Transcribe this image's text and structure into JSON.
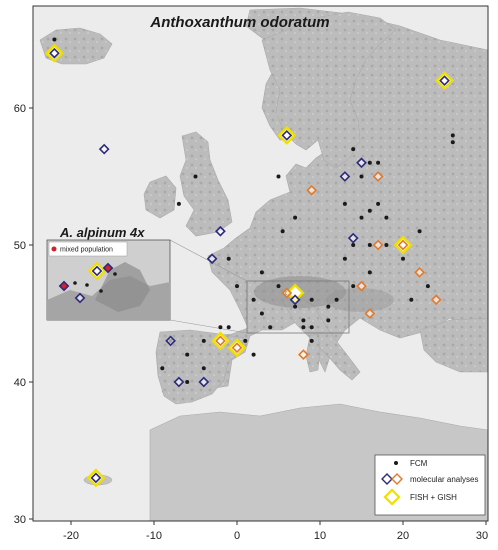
{
  "title": "Anthoxanthum odoratum",
  "inset": {
    "title": "A. alpinum 4x",
    "legend_label": "mixed population",
    "colors": {
      "mixed": "#d62027"
    }
  },
  "legend": {
    "fcm": "FCM",
    "molecular": "molecular analyses",
    "fish": "FISH + GISH"
  },
  "colors": {
    "fcm": "#1a1a1a",
    "molecular_a": "#2c2a7a",
    "molecular_b": "#e07a2c",
    "fish": "#f0e000"
  },
  "axes": {
    "x_ticks": [
      "-20",
      "-10",
      "0",
      "10",
      "20",
      "30"
    ],
    "y_ticks": [
      "60",
      "50",
      "40",
      "30"
    ]
  },
  "map_data": {
    "fcm": [
      [
        -22,
        65
      ],
      [
        5,
        55
      ],
      [
        7,
        52
      ],
      [
        -7,
        53
      ],
      [
        -5,
        55
      ],
      [
        14,
        57
      ],
      [
        16,
        56
      ],
      [
        15,
        55
      ],
      [
        17,
        56
      ],
      [
        13,
        53
      ],
      [
        15,
        52
      ],
      [
        16,
        52.5
      ],
      [
        18,
        52
      ],
      [
        16,
        50
      ],
      [
        14,
        50
      ],
      [
        18,
        50
      ],
      [
        22,
        51
      ],
      [
        20,
        49
      ],
      [
        16,
        48
      ],
      [
        14,
        47
      ],
      [
        12,
        46
      ],
      [
        11,
        45.5
      ],
      [
        9,
        46
      ],
      [
        9,
        44
      ],
      [
        9,
        43
      ],
      [
        8,
        44
      ],
      [
        4,
        44
      ],
      [
        3,
        45
      ],
      [
        2,
        46
      ],
      [
        3,
        48
      ],
      [
        -1,
        49
      ],
      [
        0,
        47
      ],
      [
        -2,
        44
      ],
      [
        -4,
        43
      ],
      [
        -6,
        42
      ],
      [
        -4,
        41
      ],
      [
        -6,
        40
      ],
      [
        -9,
        41
      ],
      [
        -8,
        43
      ],
      [
        -1,
        44
      ],
      [
        2,
        42
      ],
      [
        1,
        43
      ],
      [
        5,
        47
      ],
      [
        6,
        46.5
      ],
      [
        13,
        49
      ],
      [
        17,
        53
      ],
      [
        26,
        58
      ],
      [
        26,
        57.5
      ],
      [
        23,
        47
      ],
      [
        21,
        46
      ],
      [
        11,
        44.5
      ],
      [
        8,
        44.5
      ],
      [
        7,
        45.5
      ],
      [
        5.5,
        51
      ],
      [
        -11,
        49
      ]
    ],
    "molecular_purple": [
      [
        -22,
        64
      ],
      [
        -16,
        57
      ],
      [
        13,
        55
      ],
      [
        15,
        56
      ],
      [
        -2,
        51
      ],
      [
        -3,
        49
      ],
      [
        14,
        50.5
      ],
      [
        -8,
        43
      ],
      [
        -7,
        40
      ],
      [
        -4,
        40
      ],
      [
        6,
        58
      ],
      [
        25,
        62
      ],
      [
        -17,
        33
      ],
      [
        7,
        46
      ]
    ],
    "molecular_orange": [
      [
        9,
        54
      ],
      [
        17,
        55
      ],
      [
        17,
        50
      ],
      [
        20,
        50
      ],
      [
        22,
        48
      ],
      [
        24,
        46
      ],
      [
        15,
        47
      ],
      [
        16,
        45
      ],
      [
        8,
        42
      ],
      [
        0,
        42.5
      ],
      [
        6,
        46.5
      ],
      [
        -2,
        43
      ]
    ],
    "fish": [
      [
        -22,
        64
      ],
      [
        6,
        58
      ],
      [
        25,
        62
      ],
      [
        -17,
        33
      ],
      [
        20,
        50
      ],
      [
        7,
        46.5
      ],
      [
        -2,
        43
      ],
      [
        0,
        42.5
      ]
    ]
  }
}
